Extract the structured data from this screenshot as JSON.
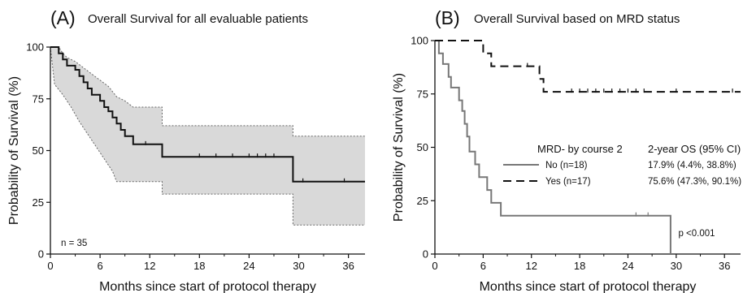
{
  "chart_data": [
    {
      "type": "line",
      "panel_label": "(A)",
      "title": "Overall Survival for all evaluable patients",
      "xlabel": "Months since start of protocol therapy",
      "ylabel": "Probability of Survival (%)",
      "xlim": [
        0,
        38
      ],
      "ylim": [
        0,
        100
      ],
      "xticks": [
        0,
        6,
        12,
        18,
        24,
        30,
        36
      ],
      "yticks": [
        0,
        25,
        50,
        75,
        100
      ],
      "annotation": "n = 35",
      "grid": false,
      "confidence_band": {
        "color": "#d9d9d9",
        "upper": [
          [
            0,
            100
          ],
          [
            1,
            100
          ],
          [
            1.5,
            97
          ],
          [
            2,
            95
          ],
          [
            3,
            93
          ],
          [
            4,
            90
          ],
          [
            5,
            87
          ],
          [
            6,
            84
          ],
          [
            7,
            81
          ],
          [
            8,
            76
          ],
          [
            9,
            74
          ],
          [
            10,
            71
          ],
          [
            13.5,
            71
          ],
          [
            13.5,
            62
          ],
          [
            29.3,
            62
          ],
          [
            29.3,
            57
          ],
          [
            38,
            57
          ]
        ],
        "lower": [
          [
            0,
            100
          ],
          [
            0.5,
            82
          ],
          [
            1.5,
            77
          ],
          [
            2.5,
            71
          ],
          [
            3.5,
            64
          ],
          [
            4.5,
            58
          ],
          [
            5.5,
            52
          ],
          [
            6.5,
            46
          ],
          [
            7.5,
            40
          ],
          [
            8,
            35
          ],
          [
            13.5,
            35
          ],
          [
            13.5,
            29
          ],
          [
            29.3,
            29
          ],
          [
            29.3,
            14
          ],
          [
            38,
            14
          ]
        ]
      },
      "series": [
        {
          "color": "#111111",
          "dash": "solid",
          "steps": [
            [
              0,
              100
            ],
            [
              1,
              97
            ],
            [
              1.5,
              94
            ],
            [
              2,
              91
            ],
            [
              3,
              89
            ],
            [
              3.5,
              86
            ],
            [
              4,
              83
            ],
            [
              4.5,
              80
            ],
            [
              5,
              77
            ],
            [
              6,
              74
            ],
            [
              6.5,
              71
            ],
            [
              7,
              69
            ],
            [
              7.5,
              66
            ],
            [
              8,
              63
            ],
            [
              8.5,
              60
            ],
            [
              9,
              57
            ],
            [
              10,
              53
            ],
            [
              13.5,
              53
            ],
            [
              13.5,
              47
            ],
            [
              29.3,
              47
            ],
            [
              29.3,
              35
            ],
            [
              38,
              35
            ]
          ],
          "censored": [
            11.5,
            18,
            20,
            22,
            24,
            25,
            26,
            27,
            30.5,
            35.5
          ]
        }
      ]
    },
    {
      "type": "line",
      "panel_label": "(B)",
      "title": "Overall Survival based on MRD status",
      "xlabel": "Months since start of protocol therapy",
      "ylabel": "Probability of Survival (%)",
      "xlim": [
        0,
        38
      ],
      "ylim": [
        0,
        100
      ],
      "xticks": [
        0,
        6,
        12,
        18,
        24,
        30,
        36
      ],
      "yticks": [
        0,
        25,
        50,
        75,
        100
      ],
      "grid": false,
      "legend": {
        "heading": "MRD- by course 2",
        "stat_heading": "2-year OS (95% CI)",
        "placement": "center-right"
      },
      "pvalue": "p <0.001",
      "series": [
        {
          "name": "No (n=18)",
          "os": "17.9%  (4.4%, 38.8%)",
          "color": "#777777",
          "dash": "solid",
          "steps": [
            [
              0,
              100
            ],
            [
              0.5,
              94
            ],
            [
              1,
              89
            ],
            [
              1.7,
              83
            ],
            [
              2,
              78
            ],
            [
              3,
              72
            ],
            [
              3.4,
              67
            ],
            [
              3.7,
              61
            ],
            [
              4,
              55
            ],
            [
              4.3,
              48
            ],
            [
              5,
              42
            ],
            [
              5.5,
              36
            ],
            [
              6.5,
              30
            ],
            [
              7,
              24
            ],
            [
              8.2,
              18
            ],
            [
              29.3,
              18
            ],
            [
              29.3,
              0
            ]
          ],
          "censored": [
            25,
            26.5
          ]
        },
        {
          "name": "Yes (n=17)",
          "os": "75.6% (47.3%, 90.1%)",
          "color": "#111111",
          "dash": "dashed",
          "steps": [
            [
              0,
              100
            ],
            [
              6,
              100
            ],
            [
              6,
              94
            ],
            [
              7,
              88
            ],
            [
              13,
              88
            ],
            [
              13,
              82
            ],
            [
              13.5,
              82
            ],
            [
              13.5,
              76
            ],
            [
              38,
              76
            ]
          ],
          "censored": [
            11.5,
            17,
            18,
            19,
            20,
            21,
            22,
            23,
            24,
            25,
            26,
            30,
            37
          ]
        }
      ]
    }
  ]
}
